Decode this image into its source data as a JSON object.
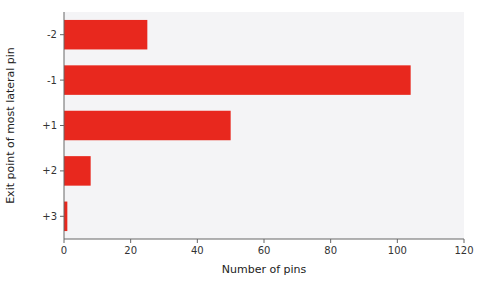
{
  "chart_data": {
    "type": "bar",
    "orientation": "horizontal",
    "categories": [
      "-2",
      "-1",
      "+1",
      "+2",
      "+3"
    ],
    "values": [
      25,
      104,
      50,
      8,
      1
    ],
    "color": "#e8281e",
    "xlabel": "Number of pins",
    "ylabel": "Exit point of most lateral pin",
    "xlim": [
      0,
      120
    ],
    "xticks": [
      0,
      20,
      40,
      60,
      80,
      100,
      120
    ],
    "grid": false
  }
}
